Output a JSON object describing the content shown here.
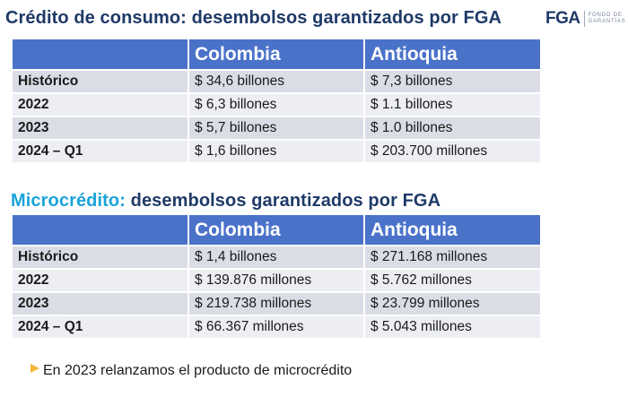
{
  "section1": {
    "title_main": "Crédito de consumo:",
    "title_rest": " desembolsos garantizados por FGA",
    "headers": [
      "",
      "Colombia",
      "Antioquia"
    ],
    "rows": [
      [
        "Histórico",
        "$ 34,6 billones",
        "$ 7,3 billones"
      ],
      [
        "2022",
        "$ 6,3 billones",
        "$ 1.1 billones"
      ],
      [
        "2023",
        "$ 5,7 billones",
        "$ 1.0 billones"
      ],
      [
        "2024 – Q1",
        "$ 1,6 billones",
        "$ 203.700 millones"
      ]
    ]
  },
  "section2": {
    "title_main": "Microcrédito:",
    "title_rest": " desembolsos garantizados por FGA",
    "headers": [
      "",
      "Colombia",
      "Antioquia"
    ],
    "rows": [
      [
        "Histórico",
        "$ 1,4 billones",
        "$ 271.168 millones"
      ],
      [
        "2022",
        "$ 139.876 millones",
        "$ 5.762 millones"
      ],
      [
        "2023",
        "$ 219.738 millones",
        "$ 23.799 millones"
      ],
      [
        "2024 – Q1",
        "$ 66.367 millones",
        "$ 5.043 millones"
      ]
    ]
  },
  "logo": {
    "mark": "FGA",
    "line1": "FONDO DE",
    "line2": "GARANTÍAS"
  },
  "note": {
    "text": "En 2023 relanzamos el producto de microcrédito"
  },
  "colors": {
    "navy": "#1f3a68",
    "cyan": "#1aa3d9",
    "header_blue": "#4a72c9",
    "bullet": "#f3b53a"
  }
}
